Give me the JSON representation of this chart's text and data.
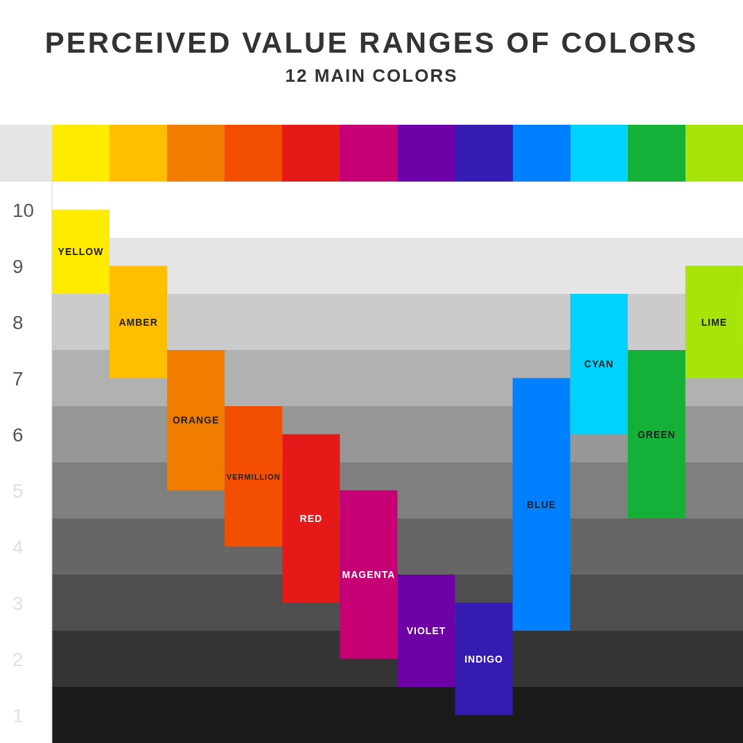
{
  "chart_data": {
    "type": "bar",
    "title": "PERCEIVED VALUE RANGES OF COLORS",
    "subtitle": "12 MAIN COLORS",
    "categories": [
      "YELLOW",
      "AMBER",
      "ORANGE",
      "VERMILLION",
      "RED",
      "MAGENTA",
      "VIOLET",
      "INDIGO",
      "BLUE",
      "CYAN",
      "GREEN",
      "LIME"
    ],
    "values": [
      1.5,
      2,
      2.5,
      2.5,
      3,
      3,
      2,
      2,
      4.5,
      2.5,
      3,
      2
    ],
    "base": [
      8.5,
      7,
      5,
      4,
      3,
      2,
      1.5,
      1,
      2.5,
      6,
      4.5,
      7
    ],
    "colors": [
      "#ffeb00",
      "#ffbf00",
      "#f07d00",
      "#f24f00",
      "#e51a18",
      "#c60074",
      "#6d00a6",
      "#361bb3",
      "#0080ff",
      "#00d2ff",
      "#14b038",
      "#a8e40a"
    ],
    "ylim": [
      0.5,
      10.5
    ],
    "yticks": [
      1,
      2,
      3,
      4,
      5,
      6,
      7,
      8,
      9,
      10
    ],
    "tick_labels": "y",
    "bands": [
      {
        "axis": "y",
        "from": 8.5,
        "to": 9.5,
        "color": "#e5e5e5"
      },
      {
        "axis": "y",
        "from": 7.5,
        "to": 8.5,
        "color": "#cbcbcb"
      },
      {
        "axis": "y",
        "from": 6.5,
        "to": 7.5,
        "color": "#b1b1b1"
      },
      {
        "axis": "y",
        "from": 5.5,
        "to": 6.5,
        "color": "#979797"
      },
      {
        "axis": "y",
        "from": 4.5,
        "to": 5.5,
        "color": "#7f7f7f"
      },
      {
        "axis": "y",
        "from": 3.5,
        "to": 4.5,
        "color": "#666666"
      },
      {
        "axis": "y",
        "from": 2.5,
        "to": 3.5,
        "color": "#4e4e4e"
      },
      {
        "axis": "y",
        "from": 1.5,
        "to": 2.5,
        "color": "#343434"
      },
      {
        "axis": "y",
        "from": 0.5,
        "to": 1.5,
        "color": "#1b1b1b"
      }
    ]
  }
}
